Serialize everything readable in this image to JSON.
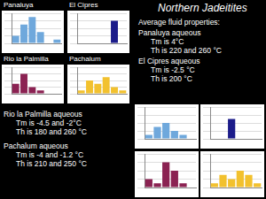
{
  "chart_data": [
    {
      "type": "bar",
      "title": "Panaluya",
      "categories": [
        null,
        null,
        null,
        null,
        null,
        null
      ],
      "values": [
        2,
        5,
        7,
        3,
        0,
        1
      ],
      "color": "#6fa8dc",
      "ylim": [
        0,
        8
      ],
      "yticks": [
        0,
        2,
        4,
        6,
        8
      ],
      "grid": true,
      "tick_labels": false
    },
    {
      "type": "bar",
      "title": "El Cipres",
      "categories": [
        null,
        null,
        null,
        null,
        null,
        null
      ],
      "values": [
        0,
        0,
        0,
        0,
        6,
        0
      ],
      "color": "#1c1c8a",
      "ylim": [
        0,
        8
      ],
      "yticks": [
        0,
        2,
        4,
        6,
        8
      ],
      "grid": true,
      "tick_labels": false
    },
    {
      "type": "bar",
      "title": "Rio la Palmilla",
      "categories": [
        null,
        null,
        null,
        null,
        null,
        null
      ],
      "values": [
        3,
        6,
        2,
        1,
        0,
        0
      ],
      "color": "#8b2252",
      "ylim": [
        0,
        8
      ],
      "yticks": [
        0,
        2,
        4,
        6,
        8
      ],
      "grid": true,
      "tick_labels": false
    },
    {
      "type": "bar",
      "title": "Pachalum",
      "categories": [
        null,
        null,
        null,
        null,
        null,
        null
      ],
      "values": [
        1,
        4,
        3,
        5,
        2,
        1
      ],
      "color": "#f2c12e",
      "ylim": [
        0,
        8
      ],
      "yticks": [
        0,
        2,
        4,
        6,
        8
      ],
      "grid": true,
      "tick_labels": false
    },
    {
      "type": "bar",
      "categories": [
        null,
        null,
        null,
        null,
        null,
        null
      ],
      "values": [
        1,
        3,
        4,
        2,
        1,
        0
      ],
      "color": "#6fa8dc",
      "ylim": [
        0,
        8
      ],
      "yticks": [
        0,
        2,
        4,
        6,
        8
      ],
      "grid": true,
      "tick_labels": false
    },
    {
      "type": "bar",
      "categories": [
        null,
        null,
        null,
        null,
        null,
        null
      ],
      "values": [
        0,
        0,
        5,
        0,
        0,
        0
      ],
      "color": "#1c1c8a",
      "ylim": [
        0,
        8
      ],
      "yticks": [
        0,
        2,
        4,
        6,
        8
      ],
      "grid": true,
      "tick_labels": false
    },
    {
      "type": "bar",
      "categories": [
        null,
        null,
        null,
        null,
        null,
        null
      ],
      "values": [
        2,
        1,
        6,
        4,
        1,
        0
      ],
      "color": "#8b2252",
      "ylim": [
        0,
        8
      ],
      "yticks": [
        0,
        2,
        4,
        6,
        8
      ],
      "grid": true,
      "tick_labels": false
    },
    {
      "type": "bar",
      "categories": [
        null,
        null,
        null,
        null,
        null,
        null
      ],
      "values": [
        1,
        3,
        2,
        4,
        3,
        1
      ],
      "color": "#f2c12e",
      "ylim": [
        0,
        8
      ],
      "yticks": [
        0,
        2,
        4,
        6,
        8
      ],
      "grid": true,
      "tick_labels": false
    }
  ],
  "slide": {
    "heading": "Northern Jadeitites",
    "subheading": "Average fluid properties:",
    "notes": [
      {
        "title": "Panaluya aqueous",
        "lines": [
          "Tm is 4°C",
          "Th is 220 and 260 °C"
        ]
      },
      {
        "title": "El Cipres aqueous",
        "lines": [
          "Tm is -2.5 °C",
          "Th is 200 °C"
        ]
      },
      {
        "title": "Rio la Palmilla aqueous",
        "lines": [
          "Tm is -4.5 and -2°C",
          "Th is 180 and 260 °C"
        ]
      },
      {
        "title": "Pachalum aqueous",
        "lines": [
          "Tm is -4 and -1.2 °C",
          "Th is 210 and 250 °C"
        ]
      }
    ]
  }
}
